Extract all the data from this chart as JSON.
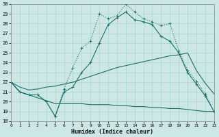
{
  "xlabel": "Humidex (Indice chaleur)",
  "bg_color": "#cde8e4",
  "grid_color": "#a8d4d0",
  "line_color": "#1a6e6a",
  "xlim": [
    0,
    23
  ],
  "ylim": [
    18,
    30
  ],
  "xticks": [
    0,
    1,
    2,
    3,
    4,
    5,
    6,
    7,
    8,
    9,
    10,
    11,
    12,
    13,
    14,
    15,
    16,
    17,
    18,
    19,
    20,
    21,
    22,
    23
  ],
  "yticks": [
    18,
    19,
    20,
    21,
    22,
    23,
    24,
    25,
    26,
    27,
    28,
    29,
    30
  ],
  "series": [
    {
      "x": [
        0,
        1,
        2,
        3,
        4,
        5,
        6,
        7,
        8,
        9,
        10,
        11,
        12,
        13,
        14,
        15,
        16,
        17,
        18,
        19,
        20,
        21,
        22,
        23
      ],
      "y": [
        22,
        21,
        20.7,
        20.7,
        20,
        18.5,
        21.3,
        23.5,
        25.5,
        26.2,
        29.0,
        28.5,
        28.8,
        30.0,
        29.2,
        28.5,
        28.2,
        27.8,
        28.0,
        25.2,
        23.2,
        22.1,
        20.8,
        19.0
      ],
      "marker": true,
      "linestyle": ":"
    },
    {
      "x": [
        0,
        1,
        2,
        3,
        4,
        5,
        6,
        7,
        8,
        9,
        10,
        11,
        12,
        13,
        14,
        15,
        16,
        17,
        18,
        19,
        20,
        21,
        22,
        23
      ],
      "y": [
        22,
        21,
        20.7,
        20.7,
        20,
        18.5,
        21.0,
        21.5,
        23.0,
        24.0,
        26.0,
        27.9,
        28.6,
        29.2,
        28.4,
        28.2,
        27.9,
        26.7,
        26.2,
        25.0,
        23.0,
        21.8,
        20.6,
        19.0
      ],
      "marker": true,
      "linestyle": "-"
    },
    {
      "x": [
        0,
        1,
        2,
        3,
        4,
        5,
        6,
        7,
        8,
        9,
        10,
        11,
        12,
        13,
        14,
        15,
        16,
        17,
        18,
        19,
        20,
        21,
        22,
        23
      ],
      "y": [
        22,
        21.5,
        21.2,
        21.3,
        21.5,
        21.6,
        21.8,
        22.0,
        22.3,
        22.6,
        22.9,
        23.2,
        23.5,
        23.7,
        23.9,
        24.1,
        24.3,
        24.5,
        24.7,
        24.8,
        25.0,
        23.2,
        21.9,
        20.8
      ],
      "marker": false,
      "linestyle": "-"
    },
    {
      "x": [
        0,
        1,
        2,
        3,
        4,
        5,
        6,
        7,
        8,
        9,
        10,
        11,
        12,
        13,
        14,
        15,
        16,
        17,
        18,
        19,
        20,
        21,
        22,
        23
      ],
      "y": [
        22,
        21.0,
        20.7,
        20.4,
        20.1,
        19.8,
        19.8,
        19.8,
        19.8,
        19.7,
        19.7,
        19.7,
        19.6,
        19.6,
        19.5,
        19.5,
        19.4,
        19.4,
        19.3,
        19.3,
        19.2,
        19.1,
        19.0,
        19.0
      ],
      "marker": false,
      "linestyle": "-"
    }
  ]
}
